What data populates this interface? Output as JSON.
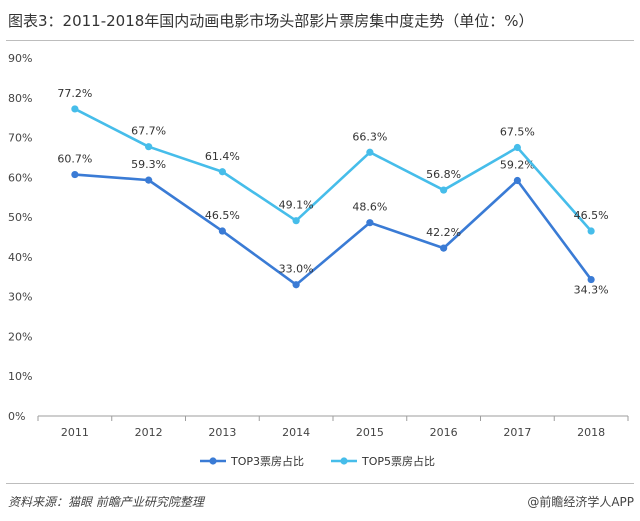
{
  "header": {
    "title": "图表3：2011-2018年国内动画电影市场头部影片票房集中度走势（单位：%）"
  },
  "footer": {
    "source": "资料来源：猫眼  前瞻产业研究院整理",
    "brand": "@前瞻经济学人APP"
  },
  "colors": {
    "top3": "#3a7bd5",
    "top5": "#46bdea",
    "axis": "#9e9e9e"
  },
  "chart_data": {
    "type": "line",
    "title": "图表3：2011-2018年国内动画电影市场头部影片票房集中度走势（单位：%）",
    "categories": [
      "2011",
      "2012",
      "2013",
      "2014",
      "2015",
      "2016",
      "2017",
      "2018"
    ],
    "ylim": [
      0,
      90
    ],
    "yticks": [
      0,
      10,
      20,
      30,
      40,
      50,
      60,
      70,
      80,
      90
    ],
    "ytick_labels": [
      "0%",
      "10%",
      "20%",
      "30%",
      "40%",
      "50%",
      "60%",
      "70%",
      "80%",
      "90%"
    ],
    "grid": false,
    "legend": "bottom",
    "series": [
      {
        "name": "TOP3票房占比",
        "values": [
          60.7,
          59.3,
          46.5,
          33.0,
          48.6,
          42.2,
          59.2,
          34.3
        ],
        "labels": [
          "60.7%",
          "59.3%",
          "46.5%",
          "33.0%",
          "48.6%",
          "42.2%",
          "59.2%",
          "34.3%"
        ]
      },
      {
        "name": "TOP5票房占比",
        "values": [
          77.2,
          67.7,
          61.4,
          49.1,
          66.3,
          56.8,
          67.5,
          46.5
        ],
        "labels": [
          "77.2%",
          "67.7%",
          "61.4%",
          "49.1%",
          "66.3%",
          "56.8%",
          "67.5%",
          "46.5%"
        ]
      }
    ]
  }
}
